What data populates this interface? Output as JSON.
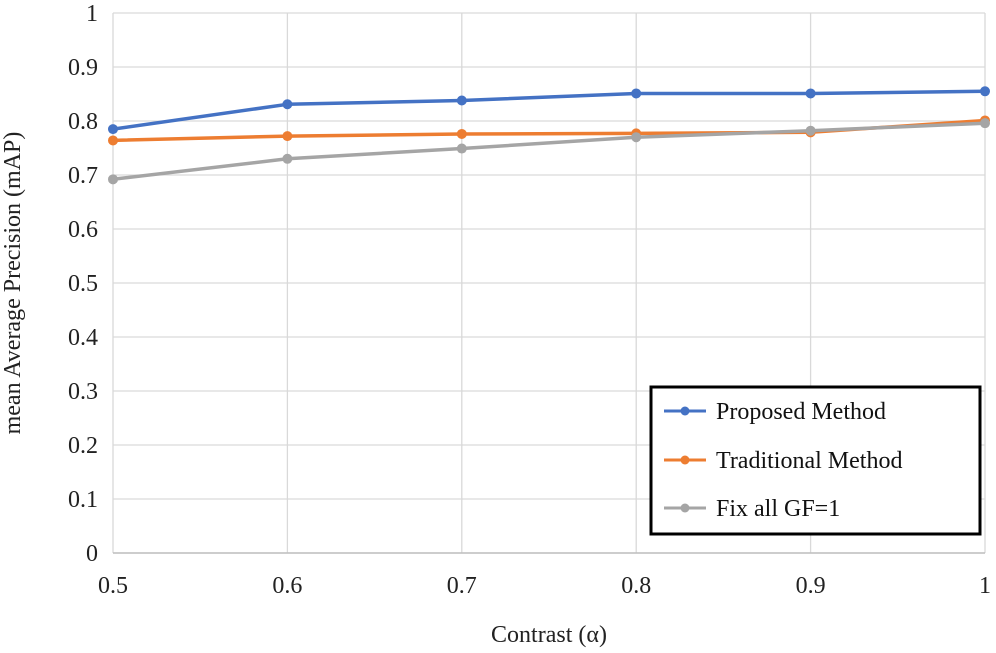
{
  "chart_data": {
    "type": "line",
    "title": "",
    "xlabel": "Contrast (α)",
    "ylabel": "mean Average Precision (mAP)",
    "x": [
      0.5,
      0.6,
      0.7,
      0.8,
      0.9,
      1
    ],
    "x_tick_labels": [
      "0.5",
      "0.6",
      "0.7",
      "0.8",
      "0.9",
      "1"
    ],
    "y_tick_labels": [
      "0",
      "0.1",
      "0.2",
      "0.3",
      "0.4",
      "0.5",
      "0.6",
      "0.7",
      "0.8",
      "0.9",
      "1"
    ],
    "xlim": [
      0.5,
      1
    ],
    "ylim": [
      0,
      1
    ],
    "grid": true,
    "legend_position": "bottom-right",
    "series": [
      {
        "name": "Proposed Method",
        "color": "#4472C4",
        "values": [
          0.785,
          0.831,
          0.838,
          0.851,
          0.851,
          0.855
        ]
      },
      {
        "name": "Traditional Method",
        "color": "#ED7D31",
        "values": [
          0.764,
          0.772,
          0.776,
          0.777,
          0.779,
          0.801
        ]
      },
      {
        "name": "Fix all GF=1",
        "color": "#A5A5A5",
        "values": [
          0.692,
          0.73,
          0.749,
          0.77,
          0.782,
          0.796
        ]
      }
    ]
  }
}
